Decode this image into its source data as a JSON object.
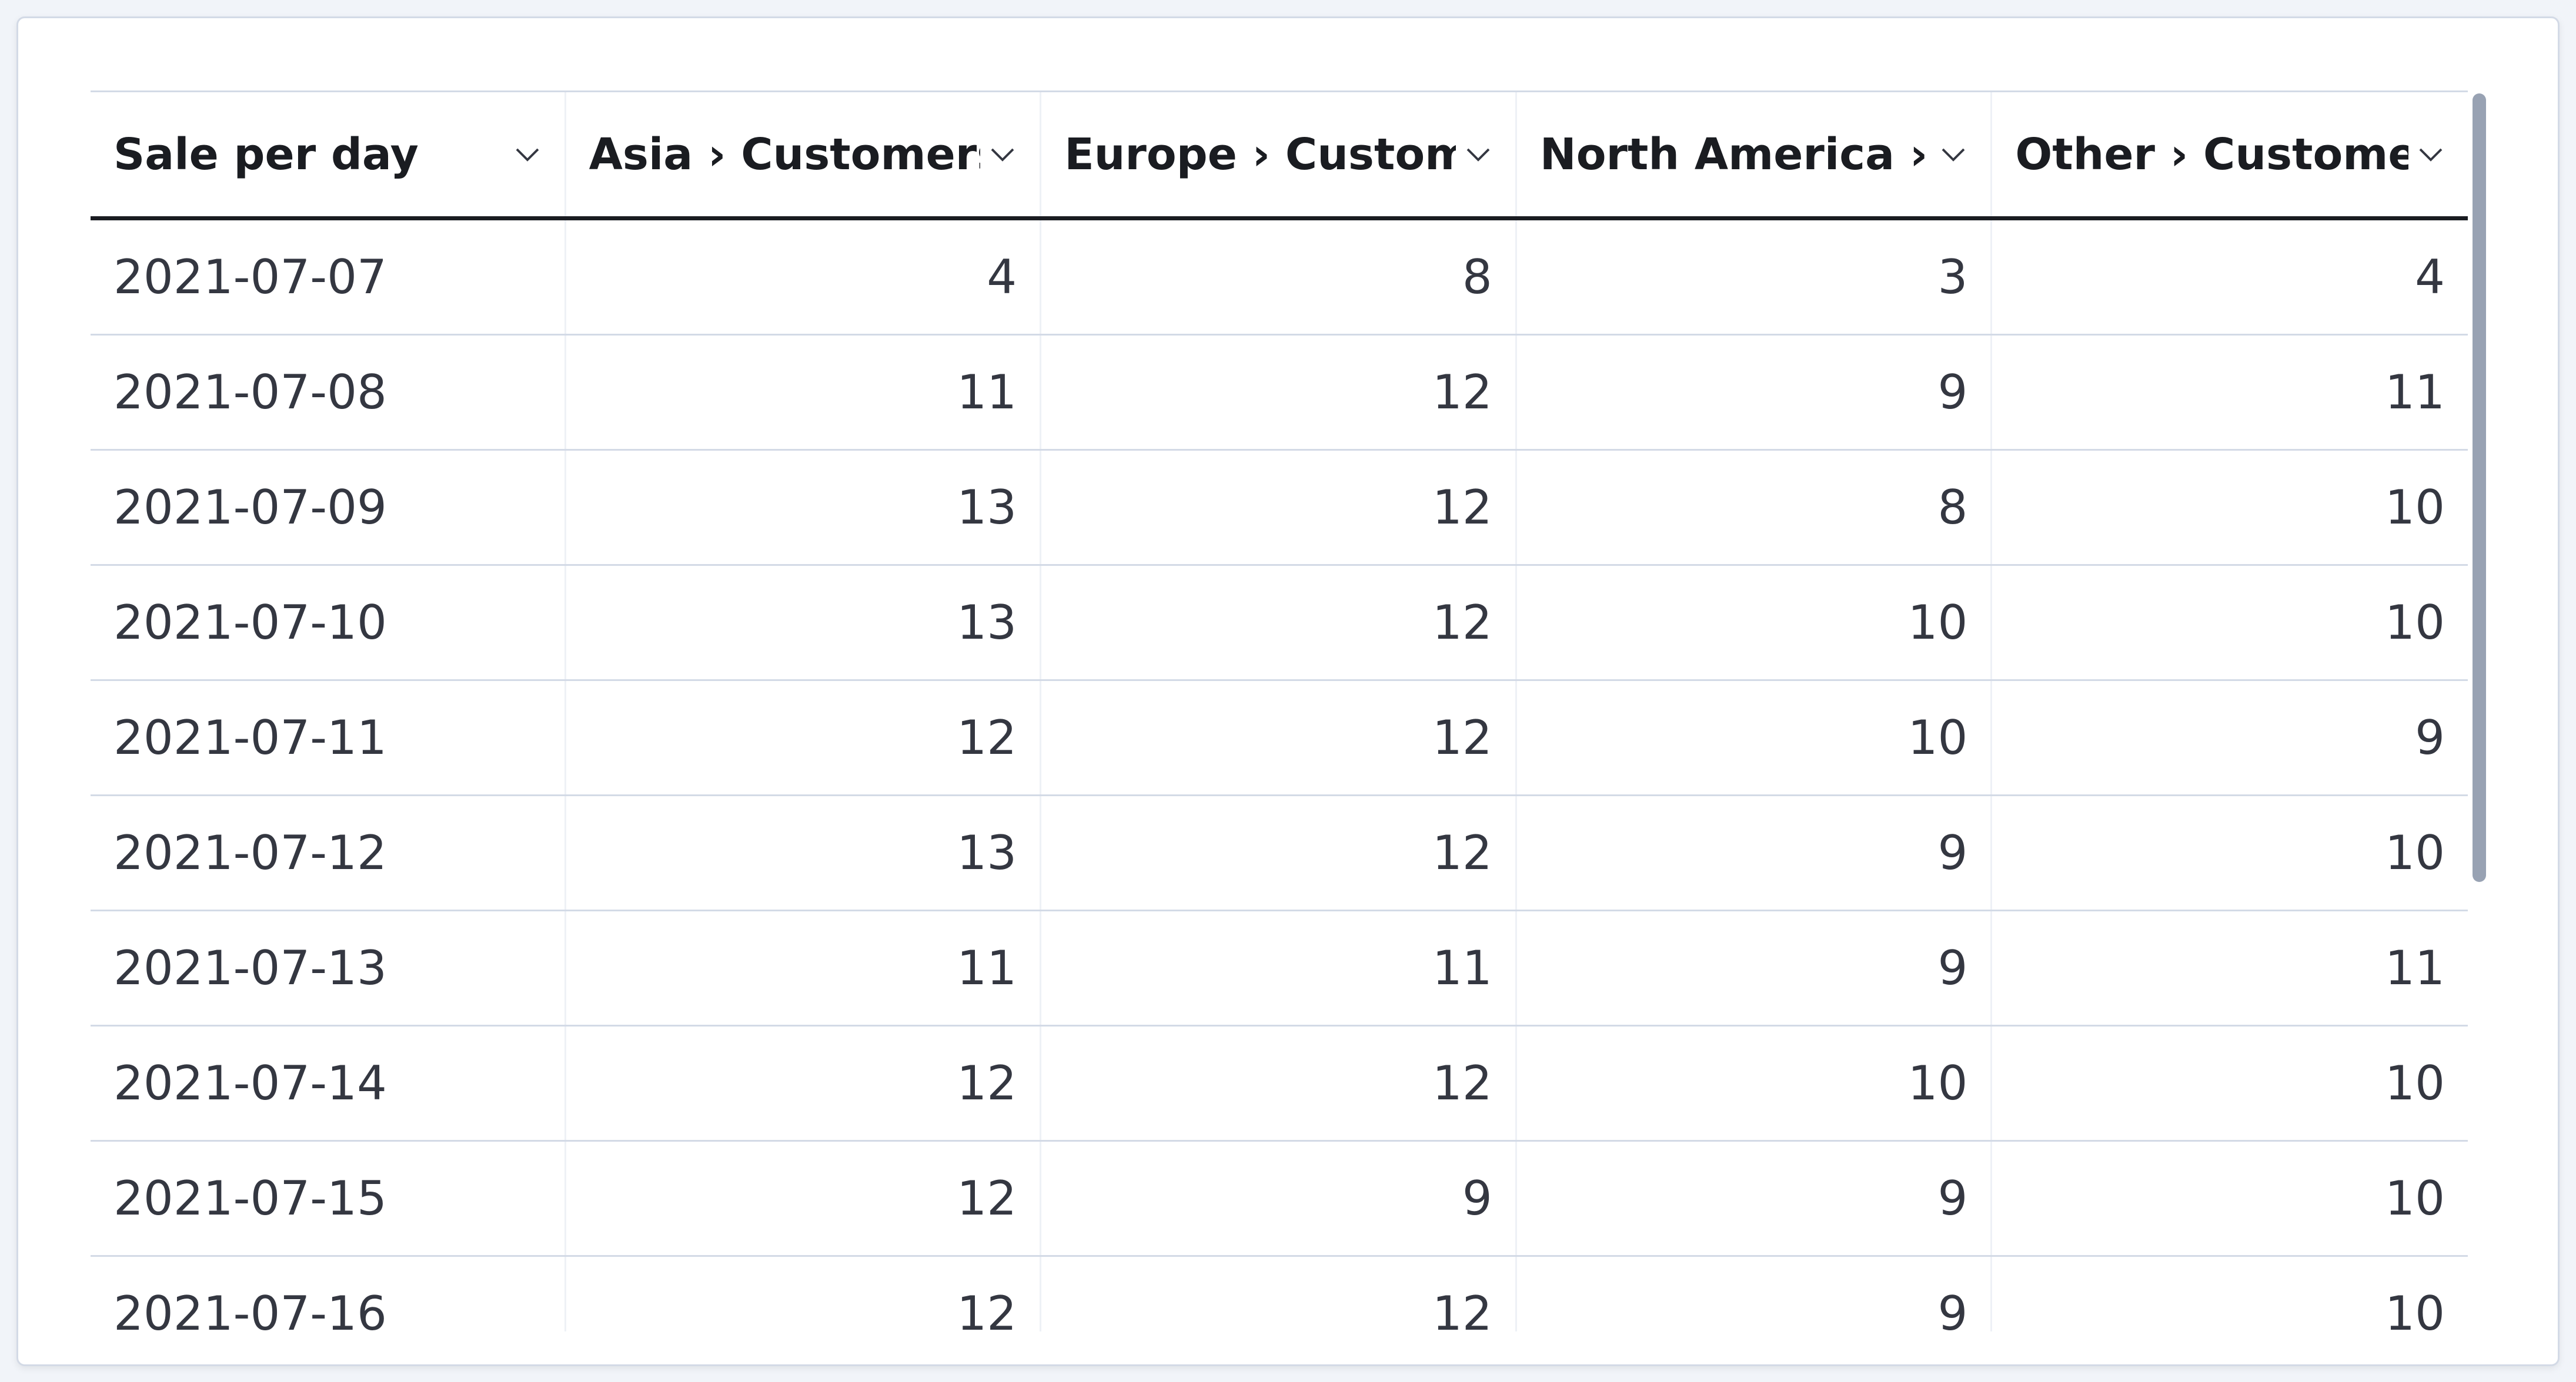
{
  "table": {
    "columns": [
      "Sale per day",
      "Asia › Customers",
      "Europe › Custom",
      "North America ›",
      "Other › Custome"
    ],
    "rows": [
      [
        "2021-07-07",
        4,
        8,
        3,
        4
      ],
      [
        "2021-07-08",
        11,
        12,
        9,
        11
      ],
      [
        "2021-07-09",
        13,
        12,
        8,
        10
      ],
      [
        "2021-07-10",
        13,
        12,
        10,
        10
      ],
      [
        "2021-07-11",
        12,
        12,
        10,
        9
      ],
      [
        "2021-07-12",
        13,
        12,
        9,
        10
      ],
      [
        "2021-07-13",
        11,
        11,
        9,
        11
      ],
      [
        "2021-07-14",
        12,
        12,
        10,
        10
      ],
      [
        "2021-07-15",
        12,
        9,
        9,
        10
      ],
      [
        "2021-07-16",
        12,
        12,
        9,
        10
      ]
    ]
  }
}
